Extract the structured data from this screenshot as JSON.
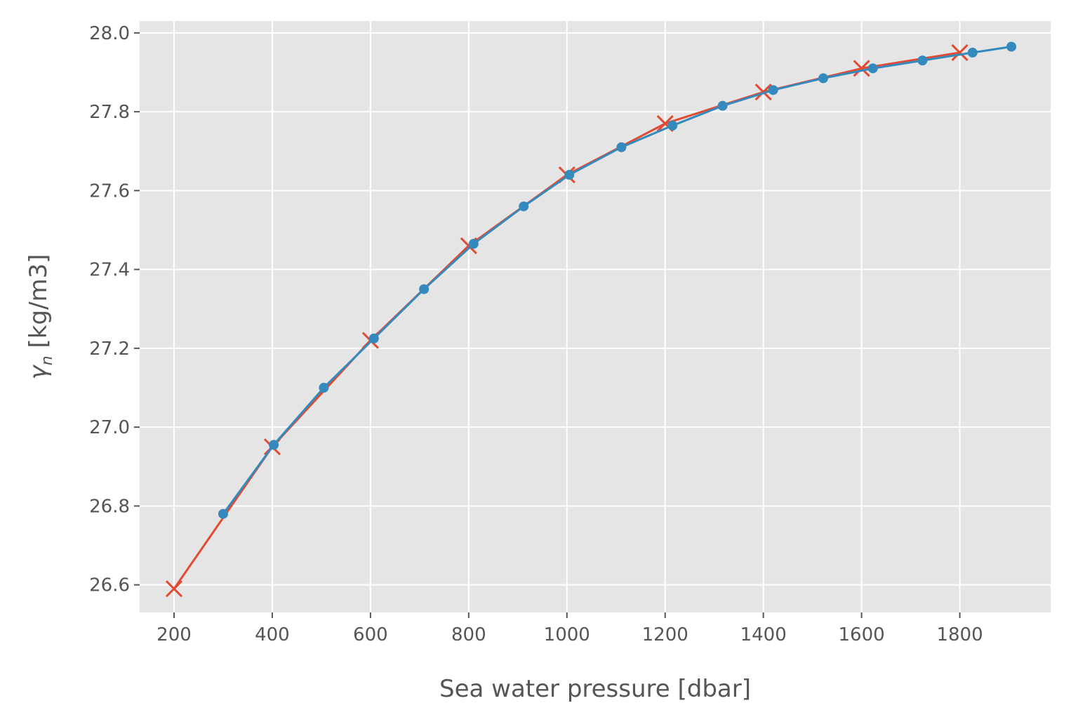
{
  "chart_data": {
    "type": "line",
    "xlabel": "Sea water pressure [dbar]",
    "ylabel_symbol": "γ",
    "ylabel_subscript": "n",
    "ylabel_unit": " [kg/m3]",
    "xlim": [
      130,
      1985
    ],
    "ylim": [
      26.53,
      28.03
    ],
    "x_ticks": [
      200,
      400,
      600,
      800,
      1000,
      1200,
      1400,
      1600,
      1800
    ],
    "y_ticks": [
      "26.6",
      "26.8",
      "27.0",
      "27.2",
      "27.4",
      "27.6",
      "27.8",
      "28.0"
    ],
    "grid": true,
    "series": [
      {
        "marker": "x",
        "color": "#E24A33",
        "x": [
          200,
          400,
          600,
          800,
          1000,
          1200,
          1400,
          1600,
          1800
        ],
        "y": [
          26.59,
          26.95,
          27.22,
          27.46,
          27.64,
          27.77,
          27.85,
          27.91,
          27.95
        ]
      },
      {
        "marker": "o",
        "color": "#348ABD",
        "x": [
          300,
          403,
          505,
          607,
          709,
          810,
          912,
          1005,
          1111,
          1215,
          1317,
          1420,
          1522,
          1623,
          1724,
          1826,
          1905
        ],
        "y": [
          26.78,
          26.955,
          27.1,
          27.225,
          27.35,
          27.465,
          27.56,
          27.64,
          27.71,
          27.765,
          27.815,
          27.855,
          27.885,
          27.91,
          27.93,
          27.95,
          27.965
        ]
      }
    ]
  },
  "style": {
    "plot_background": "#E5E5E5",
    "grid_color": "#FFFFFF",
    "text_color": "#555555"
  }
}
